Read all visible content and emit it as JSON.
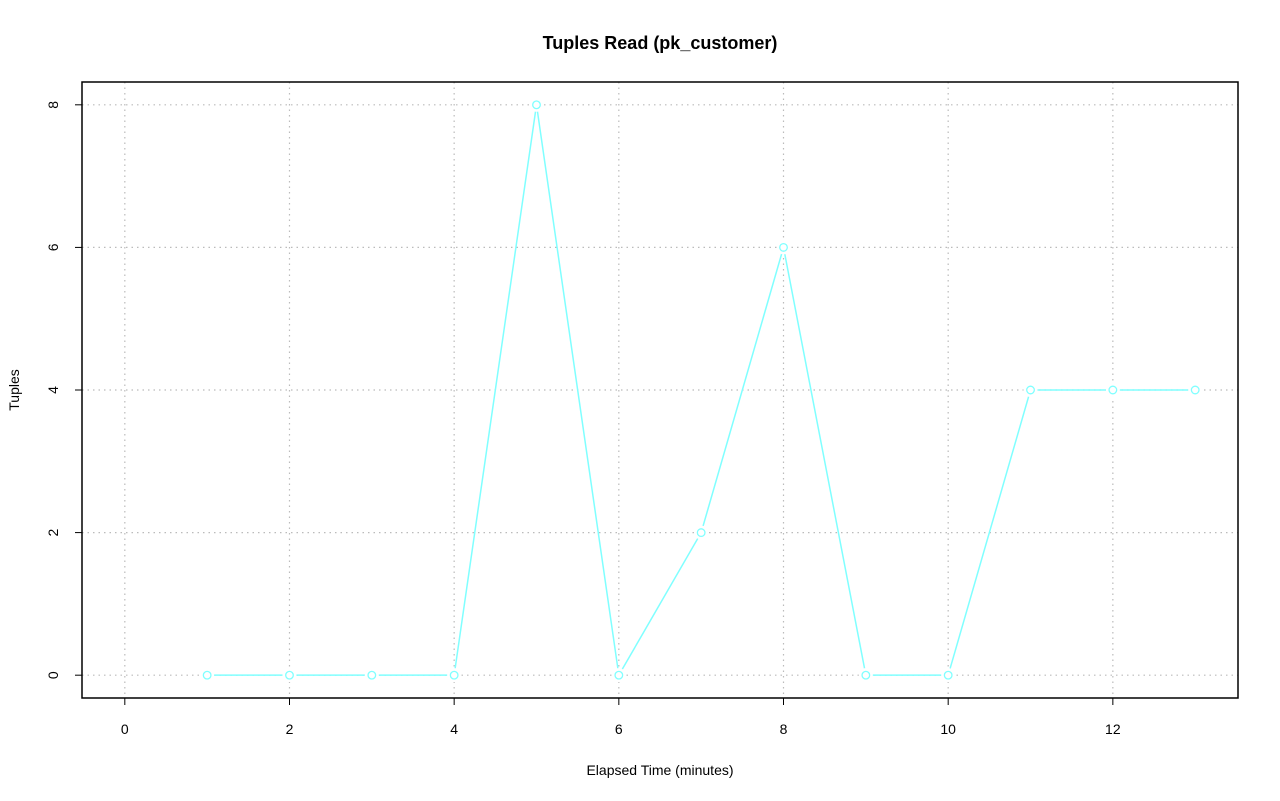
{
  "chart_data": {
    "type": "line",
    "title": "Tuples Read (pk_customer)",
    "x_label": "Elapsed Time (minutes)",
    "y_label": "Tuples",
    "x": [
      1,
      2,
      3,
      4,
      5,
      6,
      7,
      8,
      9,
      10,
      11,
      12,
      13
    ],
    "series": [
      {
        "name": "pk_customer",
        "color": "#80ffff",
        "values": [
          0,
          0,
          0,
          0,
          8,
          0,
          2,
          6,
          0,
          0,
          4,
          4,
          4
        ]
      }
    ],
    "xlim": [
      -0.52,
      13.52
    ],
    "xticks": [
      0,
      2,
      4,
      6,
      8,
      10,
      12
    ],
    "ylim": [
      -0.32,
      8.32
    ],
    "yticks": [
      0,
      2,
      4,
      6,
      8
    ],
    "grid": true
  }
}
